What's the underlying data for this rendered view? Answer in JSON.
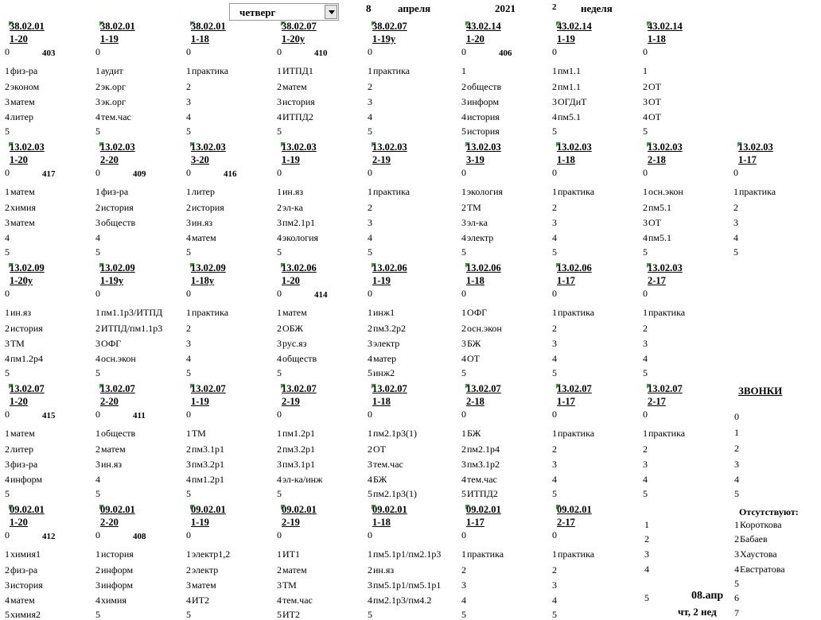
{
  "header": {
    "day": "четверг",
    "date_day": "8",
    "month": "апреля",
    "year": "2021",
    "week_number": "2",
    "week_label": "неделя"
  },
  "bands": [
    {
      "blocks": [
        {
          "code": "38.02.01",
          "group": "1-20",
          "room": "403",
          "lessons": [
            "",
            "физ-ра",
            "эконом",
            "матем",
            "литер",
            ""
          ]
        },
        {
          "code": "38.02.01",
          "group": "1-19",
          "room": "",
          "lessons": [
            "",
            "аудит",
            "эк.орг",
            "эк.орг",
            "тем.час",
            ""
          ]
        },
        {
          "code": "38.02.01",
          "group": "1-18",
          "room": "",
          "lessons": [
            "",
            "практика",
            "",
            "",
            "",
            ""
          ]
        },
        {
          "code": "38.02.07",
          "group": "1-20у",
          "room": "410",
          "lessons": [
            "",
            "ИТПД1",
            "матем",
            "история",
            "ИТПД2",
            ""
          ]
        },
        {
          "code": "38.02.07",
          "group": "1-19у",
          "room": "",
          "lessons": [
            "",
            "практика",
            "",
            "",
            "",
            ""
          ]
        },
        {
          "code": "43.02.14",
          "group": "1-20",
          "room": "406",
          "lessons": [
            "",
            "",
            "обществ",
            "информ",
            "история",
            "история"
          ]
        },
        {
          "code": "43.02.14",
          "group": "1-19",
          "room": "",
          "lessons": [
            "",
            "пм1.1",
            "пм1.1",
            "ОГДиТ",
            "пм5.1",
            ""
          ]
        },
        {
          "code": "43.02.14",
          "group": "1-18",
          "room": "",
          "lessons": [
            "",
            "",
            "ОТ",
            "ОТ",
            "ОТ",
            ""
          ]
        }
      ]
    },
    {
      "blocks": [
        {
          "code": "13.02.03",
          "group": "1-20",
          "room": "417",
          "lessons": [
            "",
            "матем",
            "химия",
            "матем",
            "",
            ""
          ]
        },
        {
          "code": "13.02.03",
          "group": "2-20",
          "room": "409",
          "lessons": [
            "",
            "физ-ра",
            "история",
            "обществ",
            "",
            ""
          ]
        },
        {
          "code": "13.02.03",
          "group": "3-20",
          "room": "416",
          "lessons": [
            "",
            "литер",
            "история",
            "ин.яз",
            "матем",
            ""
          ]
        },
        {
          "code": "13.02.03",
          "group": "1-19",
          "room": "",
          "lessons": [
            "",
            "ин.яз",
            "эл-ка",
            "пм2.1р1",
            "экология",
            ""
          ]
        },
        {
          "code": "13.02.03",
          "group": "2-19",
          "room": "",
          "lessons": [
            "",
            "практика",
            "",
            "",
            "",
            ""
          ]
        },
        {
          "code": "13.02.03",
          "group": "3-19",
          "room": "",
          "lessons": [
            "",
            "экология",
            "ТМ",
            "эл-ка",
            "электр",
            ""
          ]
        },
        {
          "code": "13.02.03",
          "group": "1-18",
          "room": "",
          "lessons": [
            "",
            "практика",
            "",
            "",
            "",
            ""
          ]
        },
        {
          "code": "13.02.03",
          "group": "2-18",
          "room": "",
          "lessons": [
            "",
            "осн.экон",
            "пм5.1",
            "ОТ",
            "пм5.1",
            ""
          ]
        },
        {
          "code": "13.02.03",
          "group": "1-17",
          "room": "",
          "lessons": [
            "",
            "практика",
            "",
            "",
            "",
            ""
          ]
        }
      ]
    },
    {
      "blocks": [
        {
          "code": "13.02.09",
          "group": "1-20у",
          "room": "",
          "lessons": [
            "",
            "ин.яз",
            "история",
            "ТМ",
            "пм1.2р4",
            ""
          ]
        },
        {
          "code": "13.02.09",
          "group": "1-19у",
          "room": "",
          "lessons": [
            "",
            "пм1.1р3/ИТПД",
            "ИТПД/пм1.1р3",
            "ОФГ",
            "осн.экон",
            ""
          ]
        },
        {
          "code": "13.02.09",
          "group": "1-18у",
          "room": "",
          "lessons": [
            "",
            "практика",
            "",
            "",
            "",
            ""
          ]
        },
        {
          "code": "13.02.06",
          "group": "1-20",
          "room": "414",
          "lessons": [
            "",
            "матем",
            "ОБЖ",
            "рус.яз",
            "обществ",
            ""
          ]
        },
        {
          "code": "13.02.06",
          "group": "1-19",
          "room": "",
          "lessons": [
            "",
            "инж1",
            "пм3.2р2",
            "электр",
            "матер",
            "инж2"
          ]
        },
        {
          "code": "13.02.06",
          "group": "1-18",
          "room": "",
          "lessons": [
            "",
            "ОФГ",
            "осн.экон",
            "БЖ",
            "ОТ",
            ""
          ]
        },
        {
          "code": "13.02.06",
          "group": "1-17",
          "room": "",
          "lessons": [
            "",
            "практика",
            "",
            "",
            "",
            ""
          ]
        },
        {
          "code": "13.02.03",
          "group": "2-17",
          "room": "",
          "lessons": [
            "",
            "практика",
            "",
            "",
            "",
            ""
          ]
        }
      ]
    },
    {
      "blocks": [
        {
          "code": "13.02.07",
          "group": "1-20",
          "room": "415",
          "lessons": [
            "",
            "матем",
            "литер",
            "физ-ра",
            "информ",
            ""
          ]
        },
        {
          "code": "13.02.07",
          "group": "2-20",
          "room": "411",
          "lessons": [
            "",
            "обществ",
            "матем",
            "ин.яз",
            "",
            ""
          ]
        },
        {
          "code": "13.02.07",
          "group": "1-19",
          "room": "",
          "lessons": [
            "",
            "ТМ",
            "пм3.1р1",
            "пм3.2р1",
            "пм1.2р1",
            ""
          ]
        },
        {
          "code": "13.02.07",
          "group": "2-19",
          "room": "",
          "lessons": [
            "",
            "пм1.2р1",
            "пм3.2р1",
            "пм3.1р1",
            "эл-ка/инж",
            ""
          ]
        },
        {
          "code": "13.02.07",
          "group": "1-18",
          "room": "",
          "lessons": [
            "",
            "пм2.1р3(1)",
            "ОТ",
            "тем.час",
            "БЖ",
            "пм2.1р3(1)"
          ]
        },
        {
          "code": "13.02.07",
          "group": "2-18",
          "room": "",
          "lessons": [
            "",
            "БЖ",
            "пм2.1р4",
            "пм3.1р2",
            "тем.час",
            "ИТПД2"
          ]
        },
        {
          "code": "13.02.07",
          "group": "1-17",
          "room": "",
          "lessons": [
            "",
            "практика",
            "",
            "",
            "",
            ""
          ]
        },
        {
          "code": "13.02.07",
          "group": "2-17",
          "room": "",
          "lessons": [
            "",
            "практика",
            "",
            "",
            "",
            ""
          ]
        }
      ]
    },
    {
      "blocks": [
        {
          "code": "09.02.01",
          "group": "1-20",
          "room": "412",
          "lessons": [
            "",
            "химия1",
            "физ-ра",
            "история",
            "матем",
            "химия2"
          ]
        },
        {
          "code": "09.02.01",
          "group": "2-20",
          "room": "408",
          "lessons": [
            "",
            "история",
            "информ",
            "информ",
            "химия",
            ""
          ]
        },
        {
          "code": "09.02.01",
          "group": "1-19",
          "room": "",
          "lessons": [
            "",
            "электр1,2",
            "электр",
            "матем",
            "ИТ2",
            ""
          ]
        },
        {
          "code": "09.02.01",
          "group": "2-19",
          "room": "",
          "lessons": [
            "",
            "ИТ1",
            "матем",
            "ТМ",
            "тем.час",
            "ИТ2"
          ]
        },
        {
          "code": "09.02.01",
          "group": "1-18",
          "room": "",
          "lessons": [
            "",
            "пм5.1р1/пм2.1р3",
            "ин.яз",
            "пм5.1р1/пм5.1р1",
            "пм2.1р3/пм4.2",
            ""
          ]
        },
        {
          "code": "09.02.01",
          "group": "1-17",
          "room": "",
          "lessons": [
            "",
            "практика",
            "",
            "",
            "",
            ""
          ]
        },
        {
          "code": "09.02.01",
          "group": "2-17",
          "room": "",
          "lessons": [
            "",
            "практика",
            "",
            "",
            "",
            ""
          ]
        }
      ]
    }
  ],
  "bells": {
    "title": "ЗВОНКИ",
    "items": [
      "0",
      "1",
      "2",
      "3",
      "4",
      "5"
    ]
  },
  "absent": {
    "title": "Отсутствуют:",
    "items": [
      "Короткова",
      "Бабаев",
      "Хаустова",
      "Евстратова",
      "",
      "",
      ""
    ]
  },
  "footer": {
    "date": "08.апр",
    "day_week": "чт, 2 нед"
  },
  "colors": {
    "cell_marker": "#3a9a3a"
  }
}
